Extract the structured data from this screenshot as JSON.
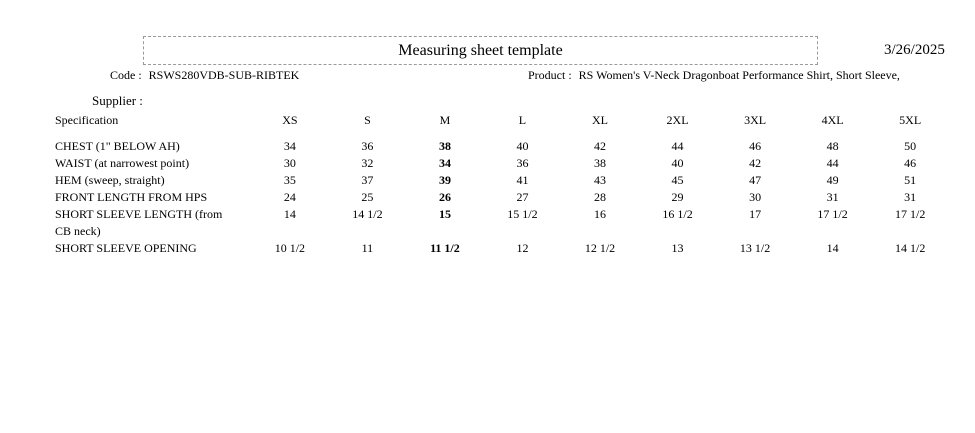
{
  "header": {
    "title": "Measuring sheet template",
    "date": "3/26/2025",
    "code_label": "Code :",
    "code_value": "RSWS280VDB-SUB-RIBTEK",
    "product_label": "Product :",
    "product_value": "RS Women's V-Neck Dragonboat Performance Shirt, Short Sleeve,",
    "supplier_label": "Supplier :"
  },
  "table": {
    "spec_header": "Specification",
    "size_headers": [
      "XS",
      "S",
      "M",
      "L",
      "XL",
      "2XL",
      "3XL",
      "4XL",
      "5XL"
    ],
    "bold_size": "M",
    "rows": [
      {
        "spec": "CHEST (1\" BELOW AH)",
        "values": [
          "34",
          "36",
          "38",
          "40",
          "42",
          "44",
          "46",
          "48",
          "50"
        ]
      },
      {
        "spec": "WAIST (at narrowest point)",
        "values": [
          "30",
          "32",
          "34",
          "36",
          "38",
          "40",
          "42",
          "44",
          "46"
        ]
      },
      {
        "spec": "HEM (sweep, straight)",
        "values": [
          "35",
          "37",
          "39",
          "41",
          "43",
          "45",
          "47",
          "49",
          "51"
        ]
      },
      {
        "spec": "FRONT LENGTH FROM HPS",
        "values": [
          "24",
          "25",
          "26",
          "27",
          "28",
          "29",
          "30",
          "31",
          "31"
        ]
      },
      {
        "spec": "SHORT SLEEVE LENGTH (from CB neck)",
        "values": [
          "14",
          "14 1/2",
          "15",
          "15 1/2",
          "16",
          "16 1/2",
          "17",
          "17 1/2",
          "17 1/2"
        ]
      },
      {
        "spec": "SHORT SLEEVE OPENING",
        "values": [
          "10 1/2",
          "11",
          "11 1/2",
          "12",
          "12 1/2",
          "13",
          "13 1/2",
          "14",
          "14 1/2"
        ]
      }
    ]
  }
}
